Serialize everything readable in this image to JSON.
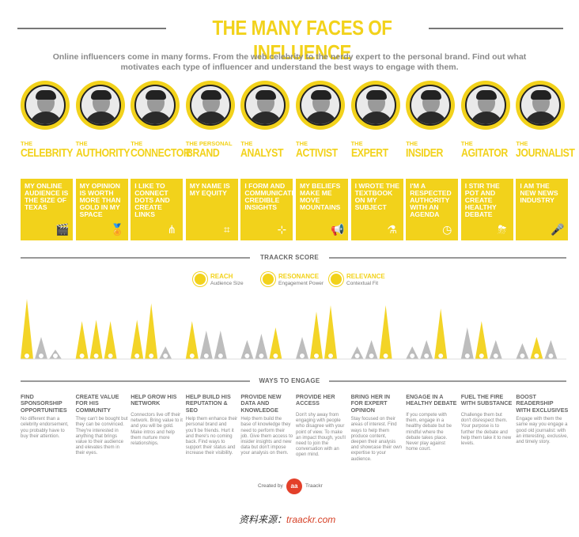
{
  "title": "THE MANY FACES OF INFLUENCE",
  "intro": "Online influencers come in many forms. From the web celebrity to the nerdy expert to the personal brand. Find out what motivates each type of influencer and understand the best ways to engage with them.",
  "accent_color": "#f2d21b",
  "grey_color": "#b9b9b9",
  "influencers": [
    {
      "prefix": "THE",
      "name": "CELEBRITY",
      "quote": "MY ONLINE AUDIENCE IS THE SIZE OF TEXAS",
      "icon": "clapperboard-icon",
      "glyph": "🎬",
      "reach": 0.95,
      "resonance": 0.35,
      "relevance": 0.15
    },
    {
      "prefix": "THE",
      "name": "AUTHORITY",
      "quote": "MY OPINION IS WORTH MORE THAN GOLD IN MY SPACE",
      "icon": "medal-icon",
      "glyph": "🏅",
      "reach": 0.6,
      "resonance": 0.62,
      "relevance": 0.6
    },
    {
      "prefix": "THE",
      "name": "CONNECTOR",
      "quote": "I LIKE TO CONNECT DOTS AND CREATE LINKS",
      "icon": "share-icon",
      "glyph": "⋔",
      "reach": 0.62,
      "resonance": 0.88,
      "relevance": 0.2
    },
    {
      "prefix": "THE PERSONAL",
      "name": "BRAND",
      "quote": "MY NAME IS MY EQUITY",
      "icon": "frame-icon",
      "glyph": "⌗",
      "reach": 0.6,
      "resonance": 0.45,
      "relevance": 0.45
    },
    {
      "prefix": "THE",
      "name": "ANALYST",
      "quote": "I FORM AND COMMUNICATE CREDIBLE INSIGHTS",
      "icon": "network-icon",
      "glyph": "⊹",
      "reach": 0.3,
      "resonance": 0.4,
      "relevance": 0.5
    },
    {
      "prefix": "THE",
      "name": "ACTIVIST",
      "quote": "MY BELIEFS MAKE ME MOVE MOUNTAINS",
      "icon": "megaphone-icon",
      "glyph": "📢",
      "reach": 0.35,
      "resonance": 0.75,
      "relevance": 0.85
    },
    {
      "prefix": "THE",
      "name": "EXPERT",
      "quote": "I WROTE THE TEXTBOOK ON MY SUBJECT",
      "icon": "flask-icon",
      "glyph": "⚗",
      "reach": 0.2,
      "resonance": 0.3,
      "relevance": 0.85
    },
    {
      "prefix": "THE",
      "name": "INSIDER",
      "quote": "I'M A RESPECTED AUTHORITY WITH AN AGENDA",
      "icon": "clock-icon",
      "glyph": "◷",
      "reach": 0.2,
      "resonance": 0.3,
      "relevance": 0.8
    },
    {
      "prefix": "THE",
      "name": "AGITATOR",
      "quote": "I STIR THE POT AND CREATE HEALTHY DEBATE",
      "icon": "storm-icon",
      "glyph": "⛈",
      "reach": 0.5,
      "resonance": 0.6,
      "relevance": 0.3
    },
    {
      "prefix": "THE",
      "name": "JOURNALIST",
      "quote": "I AM THE NEW NEWS INDUSTRY",
      "icon": "microphone-icon",
      "glyph": "🎤",
      "reach": 0.25,
      "resonance": 0.35,
      "relevance": 0.3
    }
  ],
  "score_section": "TRAACKR SCORE",
  "legend": [
    {
      "title": "REACH",
      "sub": "Audience Size"
    },
    {
      "title": "RESONANCE",
      "sub": "Engagement Power"
    },
    {
      "title": "RELEVANCE",
      "sub": "Contextual Fit"
    }
  ],
  "engage_section": "WAYS TO ENGAGE",
  "ways": [
    {
      "title": "FIND SPONSORSHIP OPPORTUNITIES",
      "body": "No different than a celebrity endorsement, you probably have to buy their attention."
    },
    {
      "title": "CREATE VALUE FOR HIS COMMUNITY",
      "body": "They can't be bought but they can be convinced. They're interested in anything that brings value to their audience and elevates them in their eyes."
    },
    {
      "title": "HELP GROW HIS NETWORK",
      "body": "Connectors live off their network. Bring value to it and you will be gold. Make intros and help them nurture more relationships."
    },
    {
      "title": "HELP BUILD HIS REPUTATION & SEO",
      "body": "Help them enhance their personal brand and you'll be friends. Hurt it and there's no coming back. Find ways to support their status and increase their visibility."
    },
    {
      "title": "PROVIDE NEW DATA AND KNOWLEDGE",
      "body": "Help them build the base of knowledge they need to perform their job. Give them access to insider insights and new data but don't impose your analysis on them."
    },
    {
      "title": "PROVIDE HER ACCESS",
      "body": "Don't shy away from engaging with people who disagree with your point of view. To make an impact though, you'll need to join the conversation with an open mind."
    },
    {
      "title": "BRING HER IN FOR EXPERT OPINION",
      "body": "Stay focused on their areas of interest. Find ways to help them produce content, deepen their analysis and showcase their own expertise to your audience."
    },
    {
      "title": "ENGAGE IN A HEALTHY DEBATE",
      "body": "If you compete with them, engage in a healthy debate but be mindful where the debate takes place. Never play against home court."
    },
    {
      "title": "FUEL THE FIRE WITH SUBSTANCE",
      "body": "Challenge them but don't disrespect them. Your purpose is to further the debate and help them take it to new levels."
    },
    {
      "title": "BOOST READERSHIP WITH EXCLUSIVES",
      "body": "Engage with them the same way you engage a good old journalist: with an interesting, exclusive, and timely story."
    }
  ],
  "credit": {
    "created_by": "Created by",
    "brand": "Traackr"
  },
  "source": {
    "label": "资料来源：",
    "link": "traackr.com"
  }
}
